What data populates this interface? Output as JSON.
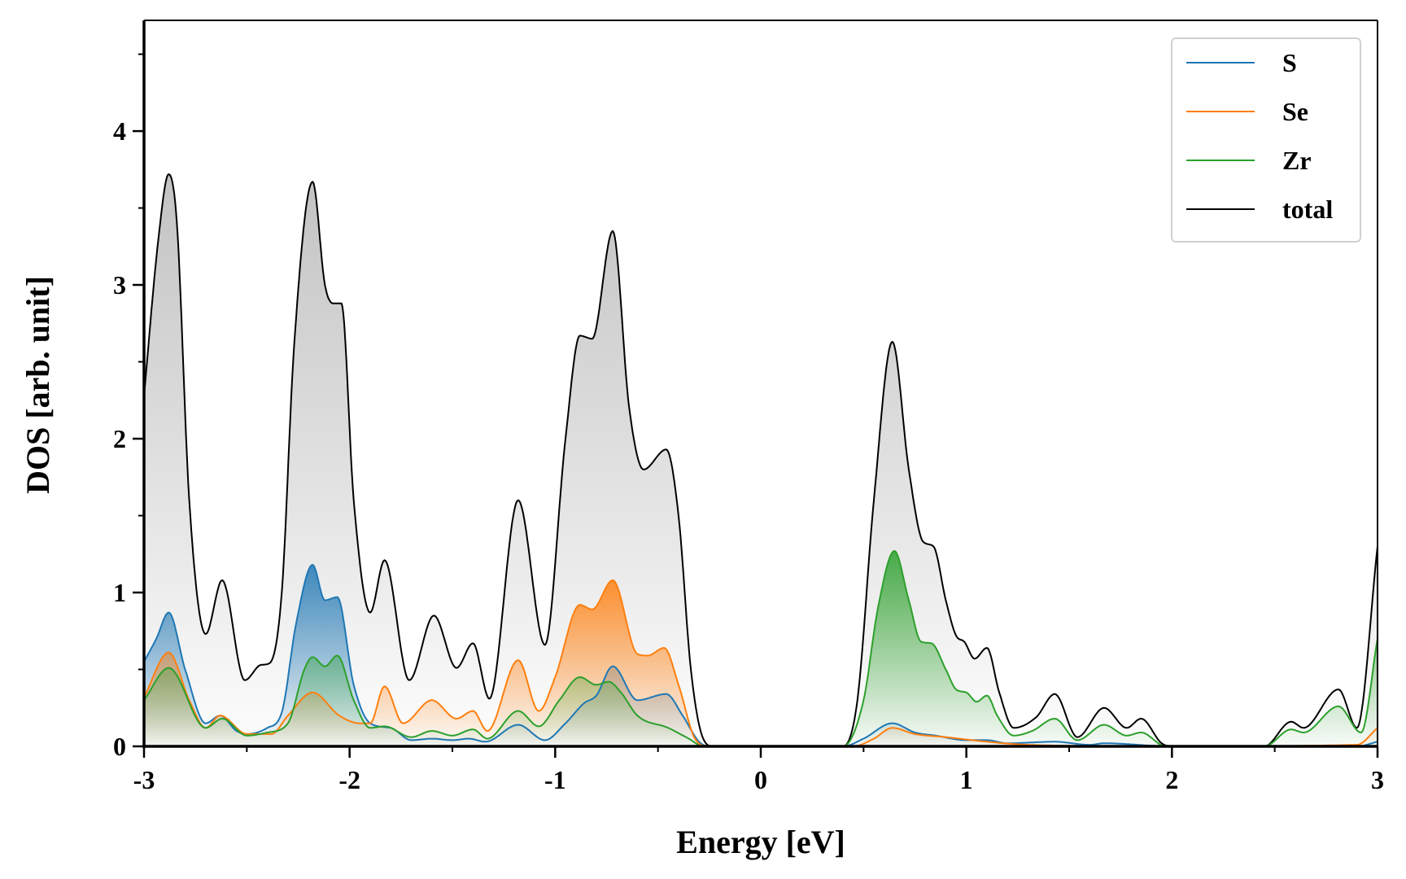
{
  "chart_data": {
    "type": "area",
    "title": "",
    "xlabel": "Energy [eV]",
    "ylabel": "DOS [arb. unit]",
    "xlim": [
      -3,
      3
    ],
    "ylim": [
      0,
      4.72
    ],
    "xticks": [
      "-3",
      "-2",
      "-1",
      "0",
      "1",
      "2",
      "3"
    ],
    "xtick_values": [
      -3,
      -2,
      -1,
      0,
      1,
      2,
      3
    ],
    "yticks": [
      "0",
      "1",
      "2",
      "3",
      "4"
    ],
    "ytick_values": [
      0,
      1,
      2,
      3,
      4
    ],
    "minor_tick_step": 0.5,
    "grid": false,
    "legend_placement": "top-right",
    "series": [
      {
        "name": "total",
        "color": "#000000",
        "fill": "#9a9a9a",
        "points": [
          [
            -3,
            2.28
          ],
          [
            -2.93,
            3.3
          ],
          [
            -2.88,
            3.72
          ],
          [
            -2.84,
            3.4
          ],
          [
            -2.78,
            1.6
          ],
          [
            -2.7,
            0.73
          ],
          [
            -2.62,
            1.08
          ],
          [
            -2.51,
            0.43
          ],
          [
            -2.43,
            0.53
          ],
          [
            -2.39,
            0.54
          ],
          [
            -2.33,
            1.0
          ],
          [
            -2.27,
            2.6
          ],
          [
            -2.18,
            3.67
          ],
          [
            -2.12,
            3.0
          ],
          [
            -2.08,
            2.88
          ],
          [
            -2.04,
            2.88
          ],
          [
            -1.98,
            1.6
          ],
          [
            -1.9,
            0.87
          ],
          [
            -1.83,
            1.21
          ],
          [
            -1.71,
            0.43
          ],
          [
            -1.59,
            0.85
          ],
          [
            -1.48,
            0.51
          ],
          [
            -1.4,
            0.67
          ],
          [
            -1.32,
            0.31
          ],
          [
            -1.18,
            1.6
          ],
          [
            -1.05,
            0.66
          ],
          [
            -0.95,
            2.0
          ],
          [
            -0.88,
            2.67
          ],
          [
            -0.82,
            2.65
          ],
          [
            -0.72,
            3.35
          ],
          [
            -0.64,
            2.2
          ],
          [
            -0.57,
            1.8
          ],
          [
            -0.46,
            1.93
          ],
          [
            -0.4,
            1.5
          ],
          [
            -0.34,
            0.5
          ],
          [
            -0.28,
            0.05
          ],
          [
            -0.23,
            0
          ],
          [
            0.4,
            0
          ],
          [
            0.47,
            0.3
          ],
          [
            0.55,
            1.6
          ],
          [
            0.64,
            2.63
          ],
          [
            0.72,
            1.8
          ],
          [
            0.79,
            1.33
          ],
          [
            0.84,
            1.3
          ],
          [
            0.9,
            0.95
          ],
          [
            0.95,
            0.72
          ],
          [
            0.99,
            0.68
          ],
          [
            1.04,
            0.57
          ],
          [
            1.1,
            0.64
          ],
          [
            1.16,
            0.35
          ],
          [
            1.23,
            0.12
          ],
          [
            1.34,
            0.19
          ],
          [
            1.43,
            0.34
          ],
          [
            1.54,
            0.06
          ],
          [
            1.67,
            0.25
          ],
          [
            1.78,
            0.12
          ],
          [
            1.85,
            0.18
          ],
          [
            1.95,
            0.02
          ],
          [
            2.01,
            0
          ],
          [
            2.45,
            0
          ],
          [
            2.58,
            0.16
          ],
          [
            2.64,
            0.12
          ],
          [
            2.81,
            0.37
          ],
          [
            2.9,
            0.12
          ],
          [
            3.0,
            1.3
          ]
        ]
      },
      {
        "name": "S",
        "color": "#1f77b4",
        "fill": "#1f77b4",
        "points": [
          [
            -3,
            0.55
          ],
          [
            -2.94,
            0.7
          ],
          [
            -2.88,
            0.87
          ],
          [
            -2.8,
            0.5
          ],
          [
            -2.7,
            0.15
          ],
          [
            -2.63,
            0.2
          ],
          [
            -2.55,
            0.1
          ],
          [
            -2.5,
            0.08
          ],
          [
            -2.4,
            0.12
          ],
          [
            -2.33,
            0.22
          ],
          [
            -2.26,
            0.8
          ],
          [
            -2.18,
            1.18
          ],
          [
            -2.12,
            0.95
          ],
          [
            -2.06,
            0.97
          ],
          [
            -1.98,
            0.4
          ],
          [
            -1.9,
            0.15
          ],
          [
            -1.8,
            0.12
          ],
          [
            -1.7,
            0.04
          ],
          [
            -1.6,
            0.05
          ],
          [
            -1.5,
            0.04
          ],
          [
            -1.42,
            0.05
          ],
          [
            -1.34,
            0.03
          ],
          [
            -1.18,
            0.14
          ],
          [
            -1.05,
            0.04
          ],
          [
            -0.95,
            0.15
          ],
          [
            -0.86,
            0.28
          ],
          [
            -0.8,
            0.33
          ],
          [
            -0.72,
            0.52
          ],
          [
            -0.6,
            0.3
          ],
          [
            -0.46,
            0.34
          ],
          [
            -0.38,
            0.2
          ],
          [
            -0.3,
            0.03
          ],
          [
            -0.25,
            0
          ],
          [
            0.4,
            0
          ],
          [
            0.5,
            0.05
          ],
          [
            0.64,
            0.15
          ],
          [
            0.75,
            0.09
          ],
          [
            0.85,
            0.07
          ],
          [
            1.0,
            0.04
          ],
          [
            1.1,
            0.04
          ],
          [
            1.2,
            0.02
          ],
          [
            1.43,
            0.03
          ],
          [
            1.6,
            0.01
          ],
          [
            1.67,
            0.02
          ],
          [
            2.0,
            0
          ],
          [
            2.9,
            0
          ],
          [
            3.0,
            0.03
          ]
        ]
      },
      {
        "name": "Se",
        "color": "#ff7f0e",
        "fill": "#ff7f0e",
        "points": [
          [
            -3,
            0.32
          ],
          [
            -2.88,
            0.61
          ],
          [
            -2.78,
            0.3
          ],
          [
            -2.7,
            0.12
          ],
          [
            -2.63,
            0.2
          ],
          [
            -2.5,
            0.08
          ],
          [
            -2.38,
            0.08
          ],
          [
            -2.3,
            0.2
          ],
          [
            -2.18,
            0.35
          ],
          [
            -2.05,
            0.2
          ],
          [
            -1.95,
            0.15
          ],
          [
            -1.9,
            0.15
          ],
          [
            -1.83,
            0.39
          ],
          [
            -1.74,
            0.15
          ],
          [
            -1.6,
            0.3
          ],
          [
            -1.48,
            0.18
          ],
          [
            -1.4,
            0.23
          ],
          [
            -1.33,
            0.1
          ],
          [
            -1.18,
            0.56
          ],
          [
            -1.08,
            0.23
          ],
          [
            -1.0,
            0.45
          ],
          [
            -0.88,
            0.92
          ],
          [
            -0.82,
            0.89
          ],
          [
            -0.72,
            1.08
          ],
          [
            -0.6,
            0.6
          ],
          [
            -0.55,
            0.59
          ],
          [
            -0.47,
            0.64
          ],
          [
            -0.4,
            0.4
          ],
          [
            -0.32,
            0.05
          ],
          [
            -0.25,
            0
          ],
          [
            0.45,
            0
          ],
          [
            0.55,
            0.05
          ],
          [
            0.64,
            0.12
          ],
          [
            0.75,
            0.08
          ],
          [
            0.9,
            0.06
          ],
          [
            1.1,
            0.03
          ],
          [
            1.3,
            0.01
          ],
          [
            2.0,
            0
          ],
          [
            2.9,
            0.01
          ],
          [
            3.0,
            0.12
          ]
        ]
      },
      {
        "name": "Zr",
        "color": "#2ca02c",
        "fill": "#2ca02c",
        "points": [
          [
            -3,
            0.3
          ],
          [
            -2.88,
            0.51
          ],
          [
            -2.7,
            0.12
          ],
          [
            -2.62,
            0.18
          ],
          [
            -2.5,
            0.07
          ],
          [
            -2.4,
            0.09
          ],
          [
            -2.3,
            0.15
          ],
          [
            -2.22,
            0.5
          ],
          [
            -2.18,
            0.58
          ],
          [
            -2.12,
            0.52
          ],
          [
            -2.06,
            0.59
          ],
          [
            -1.98,
            0.3
          ],
          [
            -1.9,
            0.12
          ],
          [
            -1.83,
            0.13
          ],
          [
            -1.7,
            0.06
          ],
          [
            -1.6,
            0.1
          ],
          [
            -1.5,
            0.07
          ],
          [
            -1.4,
            0.11
          ],
          [
            -1.33,
            0.05
          ],
          [
            -1.18,
            0.23
          ],
          [
            -1.08,
            0.13
          ],
          [
            -0.98,
            0.3
          ],
          [
            -0.88,
            0.45
          ],
          [
            -0.8,
            0.4
          ],
          [
            -0.74,
            0.42
          ],
          [
            -0.68,
            0.35
          ],
          [
            -0.6,
            0.2
          ],
          [
            -0.45,
            0.12
          ],
          [
            -0.35,
            0.05
          ],
          [
            -0.28,
            0
          ],
          [
            0.4,
            0
          ],
          [
            0.5,
            0.3
          ],
          [
            0.57,
            0.9
          ],
          [
            0.65,
            1.27
          ],
          [
            0.72,
            0.95
          ],
          [
            0.78,
            0.68
          ],
          [
            0.83,
            0.67
          ],
          [
            0.9,
            0.5
          ],
          [
            0.95,
            0.37
          ],
          [
            1.0,
            0.35
          ],
          [
            1.05,
            0.29
          ],
          [
            1.1,
            0.33
          ],
          [
            1.15,
            0.2
          ],
          [
            1.23,
            0.07
          ],
          [
            1.32,
            0.1
          ],
          [
            1.43,
            0.18
          ],
          [
            1.54,
            0.04
          ],
          [
            1.67,
            0.14
          ],
          [
            1.78,
            0.07
          ],
          [
            1.85,
            0.09
          ],
          [
            1.97,
            0
          ],
          [
            2.45,
            0
          ],
          [
            2.58,
            0.11
          ],
          [
            2.64,
            0.09
          ],
          [
            2.81,
            0.26
          ],
          [
            2.92,
            0.09
          ],
          [
            3.0,
            0.7
          ]
        ]
      }
    ],
    "legend": [
      "S",
      "Se",
      "Zr",
      "total"
    ]
  }
}
